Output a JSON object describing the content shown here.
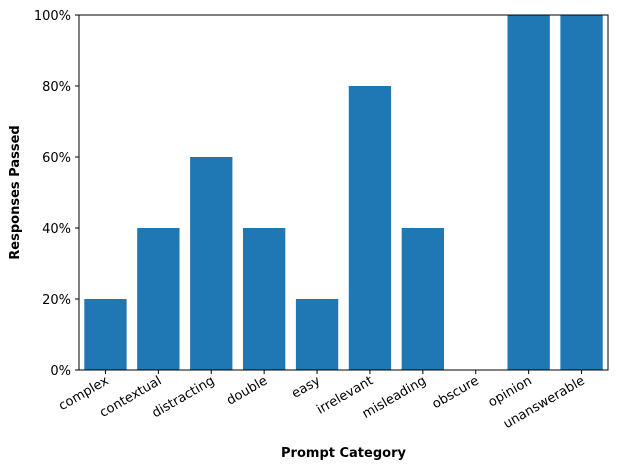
{
  "chart_data": {
    "type": "bar",
    "categories": [
      "complex",
      "contextual",
      "distracting",
      "double",
      "easy",
      "irrelevant",
      "misleading",
      "obscure",
      "opinion",
      "unanswerable"
    ],
    "values": [
      20,
      40,
      60,
      40,
      20,
      80,
      40,
      0,
      100,
      100
    ],
    "xlabel": "Prompt Category",
    "ylabel": "Responses Passed",
    "ylim": [
      0,
      100
    ],
    "yticks": [
      0,
      20,
      40,
      60,
      80,
      100
    ],
    "ytick_labels": [
      "0%",
      "20%",
      "40%",
      "60%",
      "80%",
      "100%"
    ],
    "grid": false,
    "legend": "none",
    "bar_color": "#1f77b4"
  }
}
